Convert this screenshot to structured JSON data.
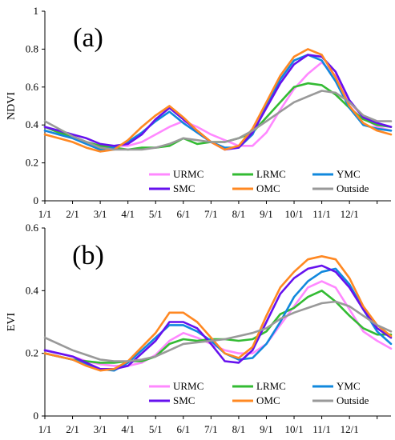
{
  "chart_data": [
    {
      "type": "line",
      "panel_label": "(a)",
      "ylabel": "NDVI",
      "ylim": [
        0,
        1
      ],
      "yticks": [
        "0",
        "0.2",
        "0.4",
        "0.6",
        "0.8",
        "1"
      ],
      "xticks": [
        "1/1",
        "2/1",
        "3/1",
        "4/1",
        "5/1",
        "6/1",
        "7/1",
        "8/1",
        "9/1",
        "10/1",
        "11/1",
        "12/1"
      ],
      "legend": [
        {
          "name": "URMC",
          "color": "#ff88ff"
        },
        {
          "name": "LRMC",
          "color": "#33bb33"
        },
        {
          "name": "YMC",
          "color": "#1188dd"
        },
        {
          "name": "SMC",
          "color": "#6611ee"
        },
        {
          "name": "OMC",
          "color": "#ff8822"
        },
        {
          "name": "Outside",
          "color": "#999999"
        }
      ],
      "x": [
        0,
        0.5,
        1,
        1.5,
        2,
        2.5,
        3,
        3.5,
        4,
        4.5,
        5,
        5.5,
        6,
        6.5,
        7,
        7.5,
        8,
        8.5,
        9,
        9.5,
        10,
        10.5,
        11,
        11.5,
        12,
        12.5
      ],
      "series": [
        {
          "name": "URMC",
          "color": "#ff88ff",
          "values": [
            0.37,
            0.35,
            0.33,
            0.31,
            0.29,
            0.29,
            0.29,
            0.31,
            0.35,
            0.39,
            0.42,
            0.39,
            0.35,
            0.32,
            0.29,
            0.29,
            0.36,
            0.48,
            0.59,
            0.67,
            0.73,
            0.66,
            0.52,
            0.44,
            0.39,
            0.37
          ]
        },
        {
          "name": "LRMC",
          "color": "#33bb33",
          "values": [
            0.39,
            0.36,
            0.34,
            0.31,
            0.29,
            0.28,
            0.27,
            0.28,
            0.28,
            0.29,
            0.33,
            0.3,
            0.31,
            0.31,
            0.33,
            0.36,
            0.44,
            0.52,
            0.6,
            0.62,
            0.61,
            0.56,
            0.49,
            0.43,
            0.4,
            0.39
          ]
        },
        {
          "name": "YMC",
          "color": "#1188dd",
          "values": [
            0.37,
            0.35,
            0.33,
            0.3,
            0.27,
            0.28,
            0.31,
            0.36,
            0.42,
            0.47,
            0.41,
            0.36,
            0.31,
            0.28,
            0.28,
            0.35,
            0.5,
            0.64,
            0.74,
            0.77,
            0.74,
            0.63,
            0.49,
            0.4,
            0.38,
            0.37
          ]
        },
        {
          "name": "SMC",
          "color": "#6611ee",
          "values": [
            0.39,
            0.37,
            0.35,
            0.33,
            0.3,
            0.29,
            0.3,
            0.35,
            0.43,
            0.49,
            0.43,
            0.37,
            0.31,
            0.27,
            0.28,
            0.36,
            0.49,
            0.62,
            0.72,
            0.77,
            0.76,
            0.68,
            0.53,
            0.44,
            0.41,
            0.39
          ]
        },
        {
          "name": "OMC",
          "color": "#ff8822",
          "values": [
            0.35,
            0.33,
            0.31,
            0.28,
            0.26,
            0.27,
            0.32,
            0.39,
            0.45,
            0.5,
            0.44,
            0.37,
            0.31,
            0.27,
            0.29,
            0.38,
            0.52,
            0.66,
            0.76,
            0.8,
            0.77,
            0.65,
            0.5,
            0.41,
            0.37,
            0.35
          ]
        },
        {
          "name": "Outside",
          "color": "#999999",
          "values": [
            0.42,
            0.38,
            0.34,
            0.31,
            0.28,
            0.27,
            0.27,
            0.27,
            0.28,
            0.3,
            0.33,
            0.32,
            0.31,
            0.31,
            0.33,
            0.37,
            0.42,
            0.47,
            0.52,
            0.55,
            0.58,
            0.57,
            0.52,
            0.45,
            0.42,
            0.42
          ]
        }
      ]
    },
    {
      "type": "line",
      "panel_label": "(b)",
      "ylabel": "EVI",
      "ylim": [
        0,
        0.6
      ],
      "yticks": [
        "0",
        "0.2",
        "0.4",
        "0.6"
      ],
      "xticks": [
        "1/1",
        "2/1",
        "3/1",
        "4/1",
        "5/1",
        "6/1",
        "7/1",
        "8/1",
        "9/1",
        "10/1",
        "11/1",
        "12/1"
      ],
      "legend": [
        {
          "name": "URMC",
          "color": "#ff88ff"
        },
        {
          "name": "LRMC",
          "color": "#33bb33"
        },
        {
          "name": "YMC",
          "color": "#1188dd"
        },
        {
          "name": "SMC",
          "color": "#6611ee"
        },
        {
          "name": "OMC",
          "color": "#ff8822"
        },
        {
          "name": "Outside",
          "color": "#999999"
        }
      ],
      "x": [
        0,
        0.5,
        1,
        1.5,
        2,
        2.5,
        3,
        3.5,
        4,
        4.5,
        5,
        5.5,
        6,
        6.5,
        7,
        7.5,
        8,
        8.5,
        9,
        9.5,
        10,
        10.5,
        11,
        11.5,
        12,
        12.5
      ],
      "series": [
        {
          "name": "URMC",
          "color": "#ff88ff",
          "values": [
            0.21,
            0.2,
            0.19,
            0.175,
            0.165,
            0.16,
            0.16,
            0.17,
            0.195,
            0.24,
            0.265,
            0.25,
            0.23,
            0.21,
            0.2,
            0.2,
            0.23,
            0.29,
            0.35,
            0.41,
            0.43,
            0.41,
            0.34,
            0.27,
            0.24,
            0.215
          ]
        },
        {
          "name": "LRMC",
          "color": "#33bb33",
          "values": [
            0.2,
            0.19,
            0.18,
            0.175,
            0.17,
            0.17,
            0.175,
            0.175,
            0.19,
            0.23,
            0.245,
            0.24,
            0.245,
            0.245,
            0.24,
            0.245,
            0.27,
            0.325,
            0.345,
            0.38,
            0.4,
            0.365,
            0.32,
            0.28,
            0.26,
            0.26
          ]
        },
        {
          "name": "YMC",
          "color": "#1188dd",
          "values": [
            0.2,
            0.19,
            0.18,
            0.165,
            0.15,
            0.145,
            0.17,
            0.21,
            0.25,
            0.29,
            0.29,
            0.27,
            0.24,
            0.2,
            0.18,
            0.185,
            0.23,
            0.3,
            0.38,
            0.43,
            0.46,
            0.47,
            0.42,
            0.34,
            0.27,
            0.23
          ]
        },
        {
          "name": "SMC",
          "color": "#6611ee",
          "values": [
            0.21,
            0.2,
            0.19,
            0.17,
            0.15,
            0.15,
            0.16,
            0.2,
            0.24,
            0.3,
            0.3,
            0.28,
            0.23,
            0.175,
            0.17,
            0.21,
            0.3,
            0.39,
            0.44,
            0.47,
            0.48,
            0.46,
            0.41,
            0.34,
            0.28,
            0.25
          ]
        },
        {
          "name": "OMC",
          "color": "#ff8822",
          "values": [
            0.2,
            0.19,
            0.18,
            0.16,
            0.145,
            0.15,
            0.175,
            0.22,
            0.265,
            0.33,
            0.33,
            0.3,
            0.25,
            0.2,
            0.185,
            0.22,
            0.32,
            0.41,
            0.46,
            0.5,
            0.51,
            0.5,
            0.44,
            0.35,
            0.29,
            0.255
          ]
        },
        {
          "name": "Outside",
          "color": "#999999",
          "values": [
            0.25,
            0.23,
            0.21,
            0.195,
            0.18,
            0.175,
            0.175,
            0.18,
            0.19,
            0.21,
            0.23,
            0.235,
            0.24,
            0.245,
            0.255,
            0.265,
            0.28,
            0.31,
            0.33,
            0.345,
            0.36,
            0.365,
            0.35,
            0.32,
            0.29,
            0.27
          ]
        }
      ]
    }
  ]
}
